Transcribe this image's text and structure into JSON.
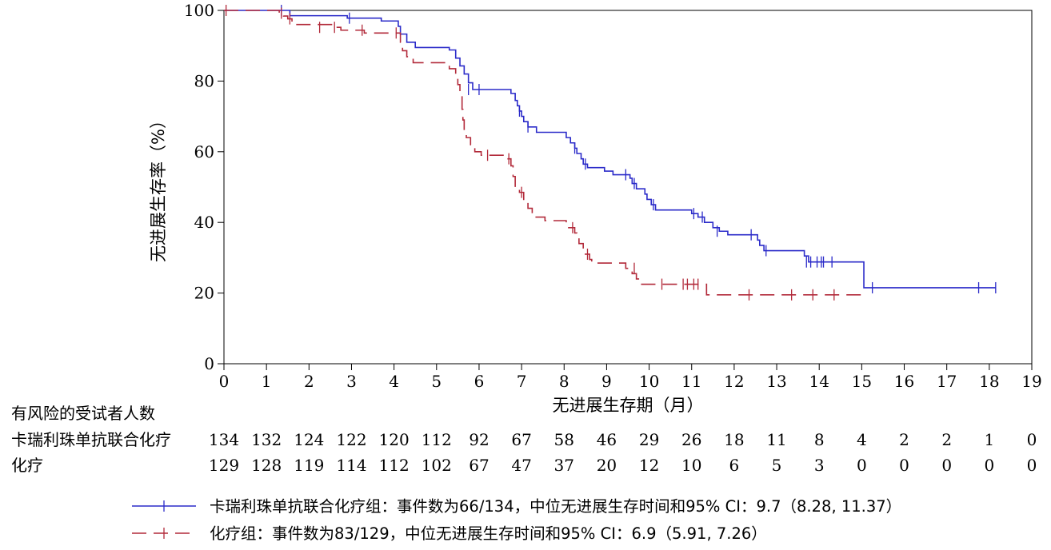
{
  "chart_data": {
    "type": "line",
    "subtype": "kaplan-meier",
    "title": "",
    "ylabel": "无进展生存率（%）",
    "xlabel": "无进展生存期（月）",
    "xlim": [
      0,
      19
    ],
    "ylim": [
      0,
      100
    ],
    "x_ticks": [
      0,
      1,
      2,
      3,
      4,
      5,
      6,
      7,
      8,
      9,
      10,
      11,
      12,
      13,
      14,
      15,
      16,
      17,
      18,
      19
    ],
    "y_ticks": [
      0,
      20,
      40,
      60,
      80,
      100
    ],
    "grid": false,
    "series": [
      {
        "name": "卡瑞利珠单抗联合化疗组",
        "color": "#2b2bc9",
        "dash": "solid",
        "steps": [
          [
            0,
            100
          ],
          [
            1.55,
            98.5
          ],
          [
            2.9,
            97.8
          ],
          [
            3.7,
            97.0
          ],
          [
            4.1,
            95.5
          ],
          [
            4.15,
            93.3
          ],
          [
            4.3,
            91.0
          ],
          [
            4.5,
            89.5
          ],
          [
            5.3,
            88.8
          ],
          [
            5.45,
            86.5
          ],
          [
            5.55,
            84.3
          ],
          [
            5.65,
            82.0
          ],
          [
            5.75,
            79.5
          ],
          [
            5.85,
            77.6
          ],
          [
            6.75,
            76.5
          ],
          [
            6.85,
            74.5
          ],
          [
            6.9,
            73.0
          ],
          [
            6.95,
            71.5
          ],
          [
            7.0,
            70.0
          ],
          [
            7.05,
            68.5
          ],
          [
            7.15,
            67.0
          ],
          [
            7.35,
            65.5
          ],
          [
            8.05,
            64.0
          ],
          [
            8.15,
            62.5
          ],
          [
            8.25,
            61.0
          ],
          [
            8.3,
            59.5
          ],
          [
            8.4,
            58.0
          ],
          [
            8.45,
            56.5
          ],
          [
            8.55,
            55.5
          ],
          [
            8.95,
            54.5
          ],
          [
            9.15,
            53.5
          ],
          [
            9.55,
            52.5
          ],
          [
            9.6,
            51.0
          ],
          [
            9.7,
            49.5
          ],
          [
            9.9,
            48.0
          ],
          [
            9.95,
            46.5
          ],
          [
            10.05,
            45.0
          ],
          [
            10.15,
            43.5
          ],
          [
            11.0,
            42.5
          ],
          [
            11.15,
            41.5
          ],
          [
            11.3,
            40.0
          ],
          [
            11.5,
            38.5
          ],
          [
            11.65,
            37.5
          ],
          [
            11.85,
            36.5
          ],
          [
            12.55,
            35.0
          ],
          [
            12.6,
            33.5
          ],
          [
            12.7,
            32.0
          ],
          [
            13.65,
            30.5
          ],
          [
            13.75,
            28.8
          ],
          [
            15.05,
            21.5
          ],
          [
            18.15,
            21.5
          ]
        ],
        "censored": [
          [
            1.35,
            100
          ],
          [
            2.95,
            97.8
          ],
          [
            5.75,
            77.6
          ],
          [
            6.0,
            77.6
          ],
          [
            6.95,
            71.5
          ],
          [
            7.15,
            67.0
          ],
          [
            8.25,
            61.0
          ],
          [
            8.5,
            56.5
          ],
          [
            9.45,
            53.5
          ],
          [
            9.65,
            51.0
          ],
          [
            10.1,
            45.0
          ],
          [
            11.05,
            42.5
          ],
          [
            11.25,
            41.5
          ],
          [
            11.6,
            37.5
          ],
          [
            12.4,
            36.5
          ],
          [
            12.75,
            32.0
          ],
          [
            13.7,
            28.8
          ],
          [
            13.8,
            28.8
          ],
          [
            13.95,
            28.8
          ],
          [
            14.05,
            28.8
          ],
          [
            14.1,
            28.8
          ],
          [
            14.3,
            28.8
          ],
          [
            15.25,
            21.5
          ],
          [
            17.75,
            21.5
          ],
          [
            18.15,
            21.5
          ]
        ]
      },
      {
        "name": "化疗组",
        "color": "#b22a3a",
        "dash": "long-dash",
        "steps": [
          [
            0,
            100
          ],
          [
            1.3,
            99.2
          ],
          [
            1.4,
            98.4
          ],
          [
            1.5,
            97.6
          ],
          [
            1.6,
            96.0
          ],
          [
            2.55,
            95.2
          ],
          [
            2.75,
            94.4
          ],
          [
            3.3,
            93.6
          ],
          [
            4.15,
            91.0
          ],
          [
            4.2,
            88.6
          ],
          [
            4.3,
            86.9
          ],
          [
            4.45,
            85.2
          ],
          [
            5.3,
            83.5
          ],
          [
            5.45,
            81.8
          ],
          [
            5.5,
            79.0
          ],
          [
            5.55,
            76.0
          ],
          [
            5.6,
            72.0
          ],
          [
            5.62,
            69.0
          ],
          [
            5.65,
            66.0
          ],
          [
            5.7,
            64.0
          ],
          [
            5.8,
            62.0
          ],
          [
            5.9,
            60.0
          ],
          [
            6.05,
            59.0
          ],
          [
            6.65,
            58.0
          ],
          [
            6.75,
            56.0
          ],
          [
            6.8,
            53.0
          ],
          [
            6.85,
            50.0
          ],
          [
            6.95,
            48.5
          ],
          [
            7.05,
            46.5
          ],
          [
            7.15,
            44.0
          ],
          [
            7.25,
            41.5
          ],
          [
            7.55,
            40.5
          ],
          [
            8.05,
            38.5
          ],
          [
            8.25,
            37.0
          ],
          [
            8.3,
            35.5
          ],
          [
            8.35,
            34.0
          ],
          [
            8.45,
            32.5
          ],
          [
            8.5,
            31.0
          ],
          [
            8.6,
            29.5
          ],
          [
            8.65,
            28.5
          ],
          [
            9.45,
            27.0
          ],
          [
            9.6,
            25.5
          ],
          [
            9.7,
            24.0
          ],
          [
            9.75,
            22.5
          ],
          [
            11.35,
            19.5
          ],
          [
            15.0,
            19.5
          ]
        ],
        "censored": [
          [
            0.05,
            100
          ],
          [
            1.35,
            99.2
          ],
          [
            1.55,
            97.6
          ],
          [
            2.25,
            95.2
          ],
          [
            2.6,
            95.2
          ],
          [
            3.25,
            94.4
          ],
          [
            4.05,
            93.6
          ],
          [
            6.2,
            59.0
          ],
          [
            6.7,
            58.0
          ],
          [
            7.0,
            48.5
          ],
          [
            8.2,
            38.5
          ],
          [
            8.55,
            31.0
          ],
          [
            9.65,
            27.0
          ],
          [
            10.3,
            22.5
          ],
          [
            10.8,
            22.5
          ],
          [
            10.9,
            22.5
          ],
          [
            11.05,
            22.5
          ],
          [
            11.15,
            22.5
          ],
          [
            12.35,
            19.5
          ],
          [
            13.35,
            19.5
          ],
          [
            13.85,
            19.5
          ],
          [
            14.35,
            19.5
          ]
        ]
      }
    ]
  },
  "risk_table": {
    "header": "有风险的受试者人数",
    "rows": [
      {
        "label": "卡瑞利珠单抗联合化疗",
        "values": [
          "134",
          "132",
          "124",
          "122",
          "120",
          "112",
          "92",
          "67",
          "58",
          "46",
          "29",
          "26",
          "18",
          "11",
          "8",
          "4",
          "2",
          "2",
          "1",
          "0"
        ]
      },
      {
        "label": "化疗",
        "values": [
          "129",
          "128",
          "119",
          "114",
          "112",
          "102",
          "67",
          "47",
          "37",
          "20",
          "12",
          "10",
          "6",
          "5",
          "3",
          "0",
          "0",
          "0",
          "0",
          "0"
        ]
      }
    ]
  },
  "legend": [
    {
      "text": "卡瑞利珠单抗联合化疗组：事件数为66/134，中位无进展生存时间和95% CI：9.7（8.28, 11.37）",
      "color": "#2b2bc9",
      "dash": "solid"
    },
    {
      "text": "化疗组：事件数为83/129，中位无进展生存时间和95% CI：6.9（5.91, 7.26）",
      "color": "#b22a3a",
      "dash": "long-dash"
    }
  ]
}
